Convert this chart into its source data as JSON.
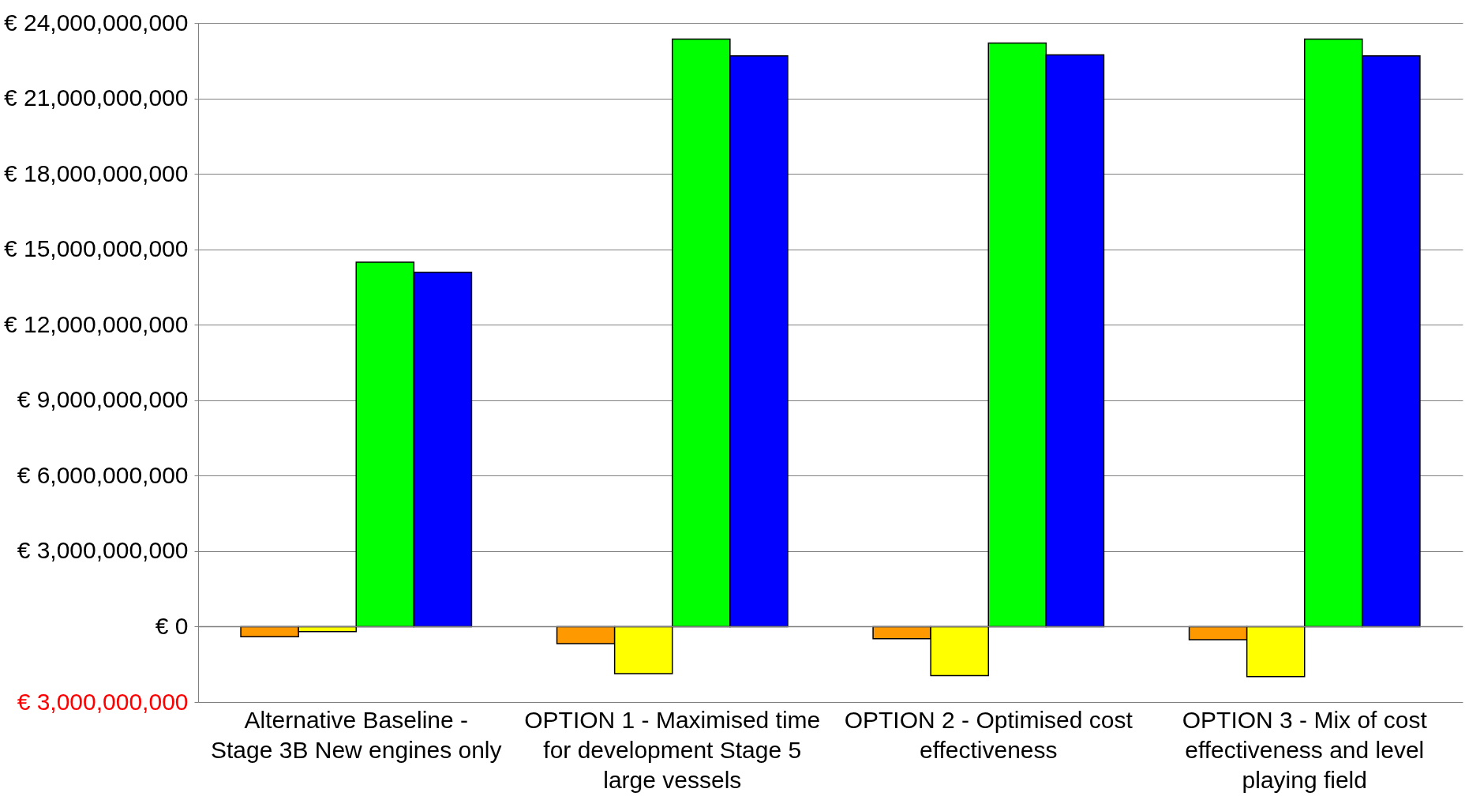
{
  "chart_data": {
    "type": "bar",
    "categories": [
      "Alternative Baseline - Stage 3B New engines only",
      "OPTION 1 - Maximised time for development Stage 5 large vessels",
      "OPTION 2 - Optimised cost effectiveness",
      "OPTION 3 - Mix of cost effectiveness and level playing field"
    ],
    "series": [
      {
        "color": "#ff9900",
        "values": [
          -400000000,
          -680000000,
          -480000000,
          -520000000
        ]
      },
      {
        "color": "#ffff00",
        "values": [
          -200000000,
          -1870000000,
          -1950000000,
          -1990000000
        ]
      },
      {
        "color": "#00ff00",
        "values": [
          14490000000,
          23360000000,
          23200000000,
          23360000000
        ]
      },
      {
        "color": "#0000ff",
        "values": [
          14090000000,
          22690000000,
          22730000000,
          22690000000
        ]
      }
    ],
    "ylim": [
      -3000000000,
      24000000000
    ],
    "yticks": [
      {
        "value": -3000000000,
        "label": "€ 3,000,000,000"
      },
      {
        "value": 0,
        "label": "€ 0"
      },
      {
        "value": 3000000000,
        "label": "€ 3,000,000,000"
      },
      {
        "value": 6000000000,
        "label": "€ 6,000,000,000"
      },
      {
        "value": 9000000000,
        "label": "€ 9,000,000,000"
      },
      {
        "value": 12000000000,
        "label": "€ 12,000,000,000"
      },
      {
        "value": 15000000000,
        "label": "€ 15,000,000,000"
      },
      {
        "value": 18000000000,
        "label": "€ 18,000,000,000"
      },
      {
        "value": 21000000000,
        "label": "€ 21,000,000,000"
      },
      {
        "value": 24000000000,
        "label": "€ 24,000,000,000"
      }
    ],
    "grid": "y"
  }
}
